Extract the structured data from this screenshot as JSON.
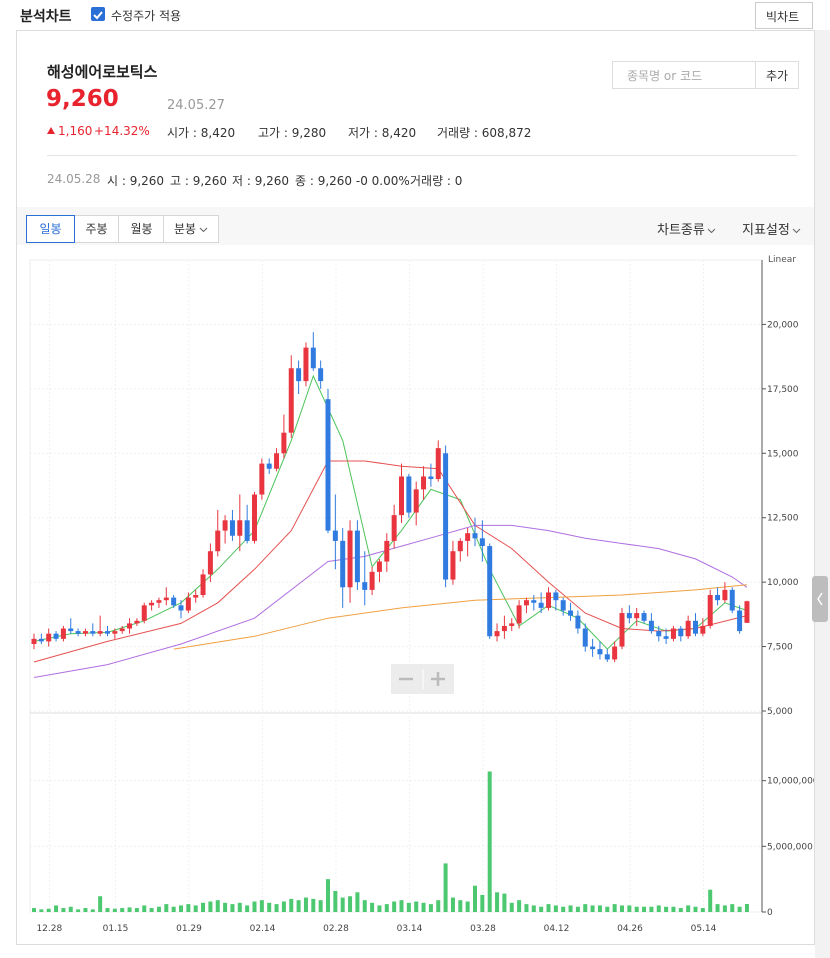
{
  "app": {
    "title": "분석차트",
    "checkbox": "수정주가 적용",
    "big_chart": "빅차트"
  },
  "stock": {
    "name": "해성에어로보틱스",
    "price": "9,260",
    "date": "24.05.27",
    "change": "1,160",
    "change_pct": "+14.32%",
    "stats": [
      "시가 : 8,420",
      "고가 : 9,280",
      "저가 : 8,420",
      "거래량 : 608,872"
    ]
  },
  "realtime": {
    "date": "24.05.28",
    "items": [
      "시 : 9,260",
      "고 : 9,260",
      "저 : 9,260",
      "종 : 9,260 -0 0.00%",
      "거래량 : 0"
    ]
  },
  "search": {
    "placeholder": "종목명 or 코드",
    "button": "추가"
  },
  "tabs": [
    "일봉",
    "주봉",
    "월봉",
    "분봉"
  ],
  "tools": [
    "차트종류",
    "지표설정"
  ],
  "chart_data": {
    "type": "candlestick",
    "scale_label": "Linear",
    "up_color": "#e8353f",
    "down_color": "#2f7be0",
    "volume_color": "#4cc870",
    "categories": [
      null,
      "12.28",
      null,
      null,
      null,
      null,
      null,
      null,
      null,
      null,
      "01.15",
      null,
      null,
      null,
      null,
      null,
      null,
      null,
      null,
      null,
      "01.29",
      null,
      null,
      null,
      null,
      null,
      null,
      null,
      null,
      null,
      "02.14",
      null,
      null,
      null,
      null,
      null,
      null,
      null,
      null,
      null,
      "02.28",
      null,
      null,
      null,
      null,
      null,
      null,
      null,
      null,
      null,
      "03.14",
      null,
      null,
      null,
      null,
      null,
      null,
      null,
      null,
      null,
      "03.28",
      null,
      null,
      null,
      null,
      null,
      null,
      null,
      null,
      null,
      "04.12",
      null,
      null,
      null,
      null,
      null,
      null,
      null,
      null,
      null,
      "04.26",
      null,
      null,
      null,
      null,
      null,
      null,
      null,
      null,
      null,
      "05.14",
      null,
      null,
      null,
      null,
      null,
      null,
      null
    ],
    "open": [
      7600,
      7800,
      7700,
      8000,
      7800,
      8200,
      8100,
      8000,
      8100,
      8000,
      8100,
      8000,
      8100,
      8200,
      8400,
      8500,
      9100,
      9200,
      9300,
      9400,
      9100,
      8900,
      9400,
      9500,
      10300,
      11200,
      12000,
      12400,
      11800,
      12400,
      11600,
      13400,
      14600,
      14400,
      15000,
      15800,
      18300,
      17800,
      19100,
      18300,
      17100,
      12000,
      11600,
      9800,
      12000,
      10000,
      9700,
      10400,
      10800,
      11600,
      12600,
      14100,
      12700,
      13600,
      14100,
      14000,
      15000,
      10100,
      11200,
      11600,
      11900,
      11700,
      11400,
      7900,
      8100,
      8300,
      8400,
      9100,
      9300,
      9200,
      9000,
      9600,
      9300,
      8900,
      8700,
      8200,
      7500,
      7400,
      7200,
      7000,
      7500,
      8800,
      8600,
      8800,
      8500,
      8100,
      7900,
      7800,
      8200,
      7900,
      8500,
      8000,
      8300,
      9500,
      9300,
      9700,
      8900,
      8420
    ],
    "high": [
      8000,
      8000,
      8200,
      8100,
      8300,
      8600,
      8200,
      8200,
      8400,
      8700,
      8300,
      8200,
      8300,
      8600,
      8600,
      9200,
      9300,
      9400,
      9800,
      9500,
      9300,
      9600,
      9700,
      10500,
      11500,
      12800,
      12600,
      12800,
      13400,
      13000,
      13500,
      14800,
      14800,
      15200,
      16500,
      18800,
      18600,
      19300,
      19700,
      18600,
      17500,
      13400,
      12100,
      12400,
      12400,
      11200,
      10600,
      10900,
      11900,
      13000,
      14600,
      14200,
      13900,
      14500,
      14600,
      15500,
      15300,
      11600,
      11700,
      12100,
      12500,
      12400,
      11500,
      8400,
      8700,
      8600,
      9300,
      9400,
      9500,
      9600,
      9800,
      9700,
      9400,
      9200,
      8900,
      8400,
      7800,
      7700,
      7400,
      7700,
      9000,
      9100,
      9000,
      8900,
      8800,
      8300,
      8200,
      8300,
      8300,
      8700,
      8800,
      8600,
      9700,
      9800,
      10000,
      9800,
      9100,
      9280
    ],
    "low": [
      7400,
      7600,
      7500,
      7700,
      7700,
      8000,
      7900,
      7900,
      7900,
      7900,
      7900,
      7800,
      8000,
      8000,
      8300,
      8400,
      8900,
      9000,
      9100,
      9000,
      8600,
      8800,
      9200,
      9400,
      10000,
      11000,
      11500,
      11600,
      11200,
      11500,
      11500,
      13200,
      14200,
      14300,
      14800,
      15600,
      17300,
      17600,
      18200,
      17500,
      11900,
      10500,
      9000,
      9200,
      9700,
      9100,
      9500,
      10000,
      10400,
      11300,
      12300,
      12500,
      12200,
      13200,
      13700,
      13900,
      9800,
      9900,
      10800,
      11000,
      11400,
      10800,
      7800,
      7700,
      7800,
      8100,
      8200,
      8800,
      8900,
      8800,
      8900,
      8900,
      8700,
      8500,
      8000,
      7300,
      7100,
      7000,
      6900,
      6900,
      7400,
      8400,
      8300,
      8400,
      8000,
      7700,
      7600,
      7700,
      7700,
      7800,
      7900,
      7900,
      8200,
      9100,
      9200,
      8800,
      8000,
      8420
    ],
    "close": [
      7800,
      7700,
      8000,
      7800,
      8200,
      8100,
      8000,
      8100,
      8000,
      8100,
      8000,
      8100,
      8200,
      8400,
      8500,
      9100,
      9200,
      9300,
      9400,
      9100,
      8900,
      9400,
      9500,
      10300,
      11200,
      12000,
      12400,
      11800,
      12400,
      11600,
      13400,
      14600,
      14400,
      15000,
      15800,
      18300,
      17800,
      19100,
      18300,
      17800,
      12000,
      11600,
      9800,
      12000,
      10000,
      9700,
      10400,
      10800,
      11600,
      12600,
      14100,
      12700,
      13600,
      14100,
      14000,
      15200,
      10100,
      11200,
      11600,
      11900,
      11700,
      11400,
      7900,
      8100,
      8300,
      8400,
      9100,
      9300,
      9200,
      9000,
      9600,
      9300,
      8900,
      8700,
      8200,
      7500,
      7400,
      7200,
      7000,
      7500,
      8800,
      8600,
      8800,
      8500,
      8100,
      7900,
      7800,
      8200,
      7900,
      8500,
      8000,
      8300,
      9500,
      9300,
      9700,
      8900,
      8100,
      9260
    ],
    "volume": [
      300000,
      200000,
      250000,
      500000,
      300000,
      400000,
      200000,
      300000,
      200000,
      1200000,
      300000,
      250000,
      300000,
      350000,
      300000,
      500000,
      300000,
      400000,
      600000,
      400000,
      500000,
      600000,
      500000,
      700000,
      800000,
      900000,
      700000,
      600000,
      700000,
      500000,
      800000,
      900000,
      700000,
      600000,
      800000,
      1000000,
      900000,
      1100000,
      1000000,
      900000,
      2500000,
      1600000,
      1100000,
      1200000,
      1500000,
      900000,
      700000,
      500000,
      600000,
      800000,
      900000,
      700000,
      800000,
      700000,
      600000,
      900000,
      3700000,
      1100000,
      900000,
      800000,
      2000000,
      1300000,
      10700000,
      1500000,
      1400000,
      700000,
      900000,
      600000,
      500000,
      400000,
      600000,
      500000,
      400000,
      500000,
      400000,
      600000,
      500000,
      500000,
      400000,
      600000,
      500000,
      500000,
      400000,
      400000,
      400000,
      500000,
      400000,
      400000,
      300000,
      500000,
      400000,
      300000,
      1700000,
      600000,
      500000,
      600000,
      400000,
      608872
    ],
    "ma": [
      {
        "color": "#4cc35a",
        "x": [
          0,
          5,
          10,
          15,
          20,
          25,
          30,
          35,
          38,
          42,
          46,
          50,
          54,
          58,
          62,
          66,
          70,
          74,
          78,
          82,
          86,
          90,
          94,
          97
        ],
        "values": [
          7700,
          8000,
          8050,
          8500,
          9200,
          10500,
          12000,
          15500,
          18000,
          15500,
          10600,
          12000,
          13600,
          13200,
          10500,
          8300,
          9100,
          8600,
          7400,
          8500,
          8100,
          8200,
          9200,
          8900
        ]
      },
      {
        "color": "#e65050",
        "x": [
          0,
          10,
          20,
          25,
          30,
          35,
          40,
          45,
          50,
          55,
          60,
          65,
          70,
          75,
          80,
          85,
          90,
          97
        ],
        "values": [
          6900,
          7700,
          8400,
          9200,
          10500,
          12000,
          14700,
          14700,
          14500,
          14400,
          12200,
          11300,
          10000,
          8800,
          8200,
          8100,
          8200,
          8700
        ]
      },
      {
        "color": "#b06ee0",
        "x": [
          0,
          10,
          20,
          30,
          40,
          45,
          50,
          55,
          60,
          65,
          70,
          75,
          80,
          85,
          90,
          95,
          97
        ],
        "values": [
          6300,
          6800,
          7600,
          8600,
          10800,
          11000,
          11400,
          11800,
          12200,
          12200,
          12000,
          11700,
          11500,
          11300,
          10900,
          10200,
          9800
        ]
      },
      {
        "color": "#f0a040",
        "x": [
          19,
          30,
          40,
          50,
          60,
          70,
          80,
          90,
          97
        ],
        "values": [
          7400,
          7900,
          8600,
          9000,
          9300,
          9400,
          9500,
          9700,
          9900
        ]
      }
    ],
    "ylim": [
      5000,
      22500
    ],
    "yticks": [
      {
        "value": 5000,
        "label": "5,000"
      },
      {
        "value": 7500,
        "label": "7,500"
      },
      {
        "value": 10000,
        "label": "10,000"
      },
      {
        "value": 12500,
        "label": "12,500"
      },
      {
        "value": 15000,
        "label": "15,000"
      },
      {
        "value": 17500,
        "label": "17,500"
      },
      {
        "value": 20000,
        "label": "20,000"
      }
    ],
    "y2lim": [
      0,
      15000000
    ],
    "y2ticks": [
      0,
      {
        "value": 5000000,
        "label": "5,000,000"
      },
      {
        "value": 10000000,
        "label": "10,000,000"
      }
    ],
    "grid": true
  }
}
